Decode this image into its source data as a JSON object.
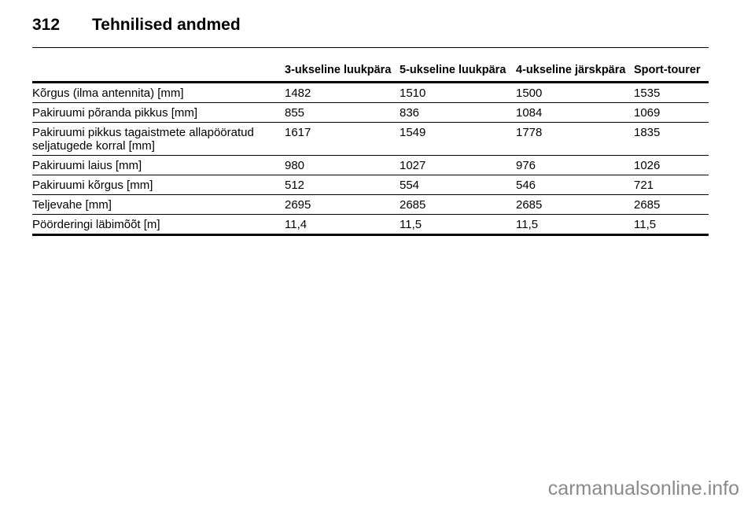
{
  "page": {
    "number": "312",
    "title": "Tehnilised andmed"
  },
  "table": {
    "columns": [
      "",
      "3-ukseline luukpära",
      "5-ukseline luukpära",
      "4-ukseline järskpära",
      "Sport-tourer"
    ],
    "rows": [
      {
        "label": "Kõrgus (ilma antennita) [mm]",
        "values": [
          "1482",
          "1510",
          "1500",
          "1535"
        ]
      },
      {
        "label": "Pakiruumi põranda pikkus [mm]",
        "values": [
          "855",
          "836",
          "1084",
          "1069"
        ]
      },
      {
        "label": "Pakiruumi pikkus tagaistmete allapööratud seljatugede korral [mm]",
        "values": [
          "1617",
          "1549",
          "1778",
          "1835"
        ]
      },
      {
        "label": "Pakiruumi laius [mm]",
        "values": [
          "980",
          "1027",
          "976",
          "1026"
        ]
      },
      {
        "label": "Pakiruumi kõrgus [mm]",
        "values": [
          "512",
          "554",
          "546",
          "721"
        ]
      },
      {
        "label": "Teljevahe [mm]",
        "values": [
          "2695",
          "2685",
          "2685",
          "2685"
        ]
      },
      {
        "label": "Pöörderingi läbimõõt [m]",
        "values": [
          "11,4",
          "11,5",
          "11,5",
          "11,5"
        ]
      }
    ]
  },
  "watermark": "carmanualsonline.info"
}
